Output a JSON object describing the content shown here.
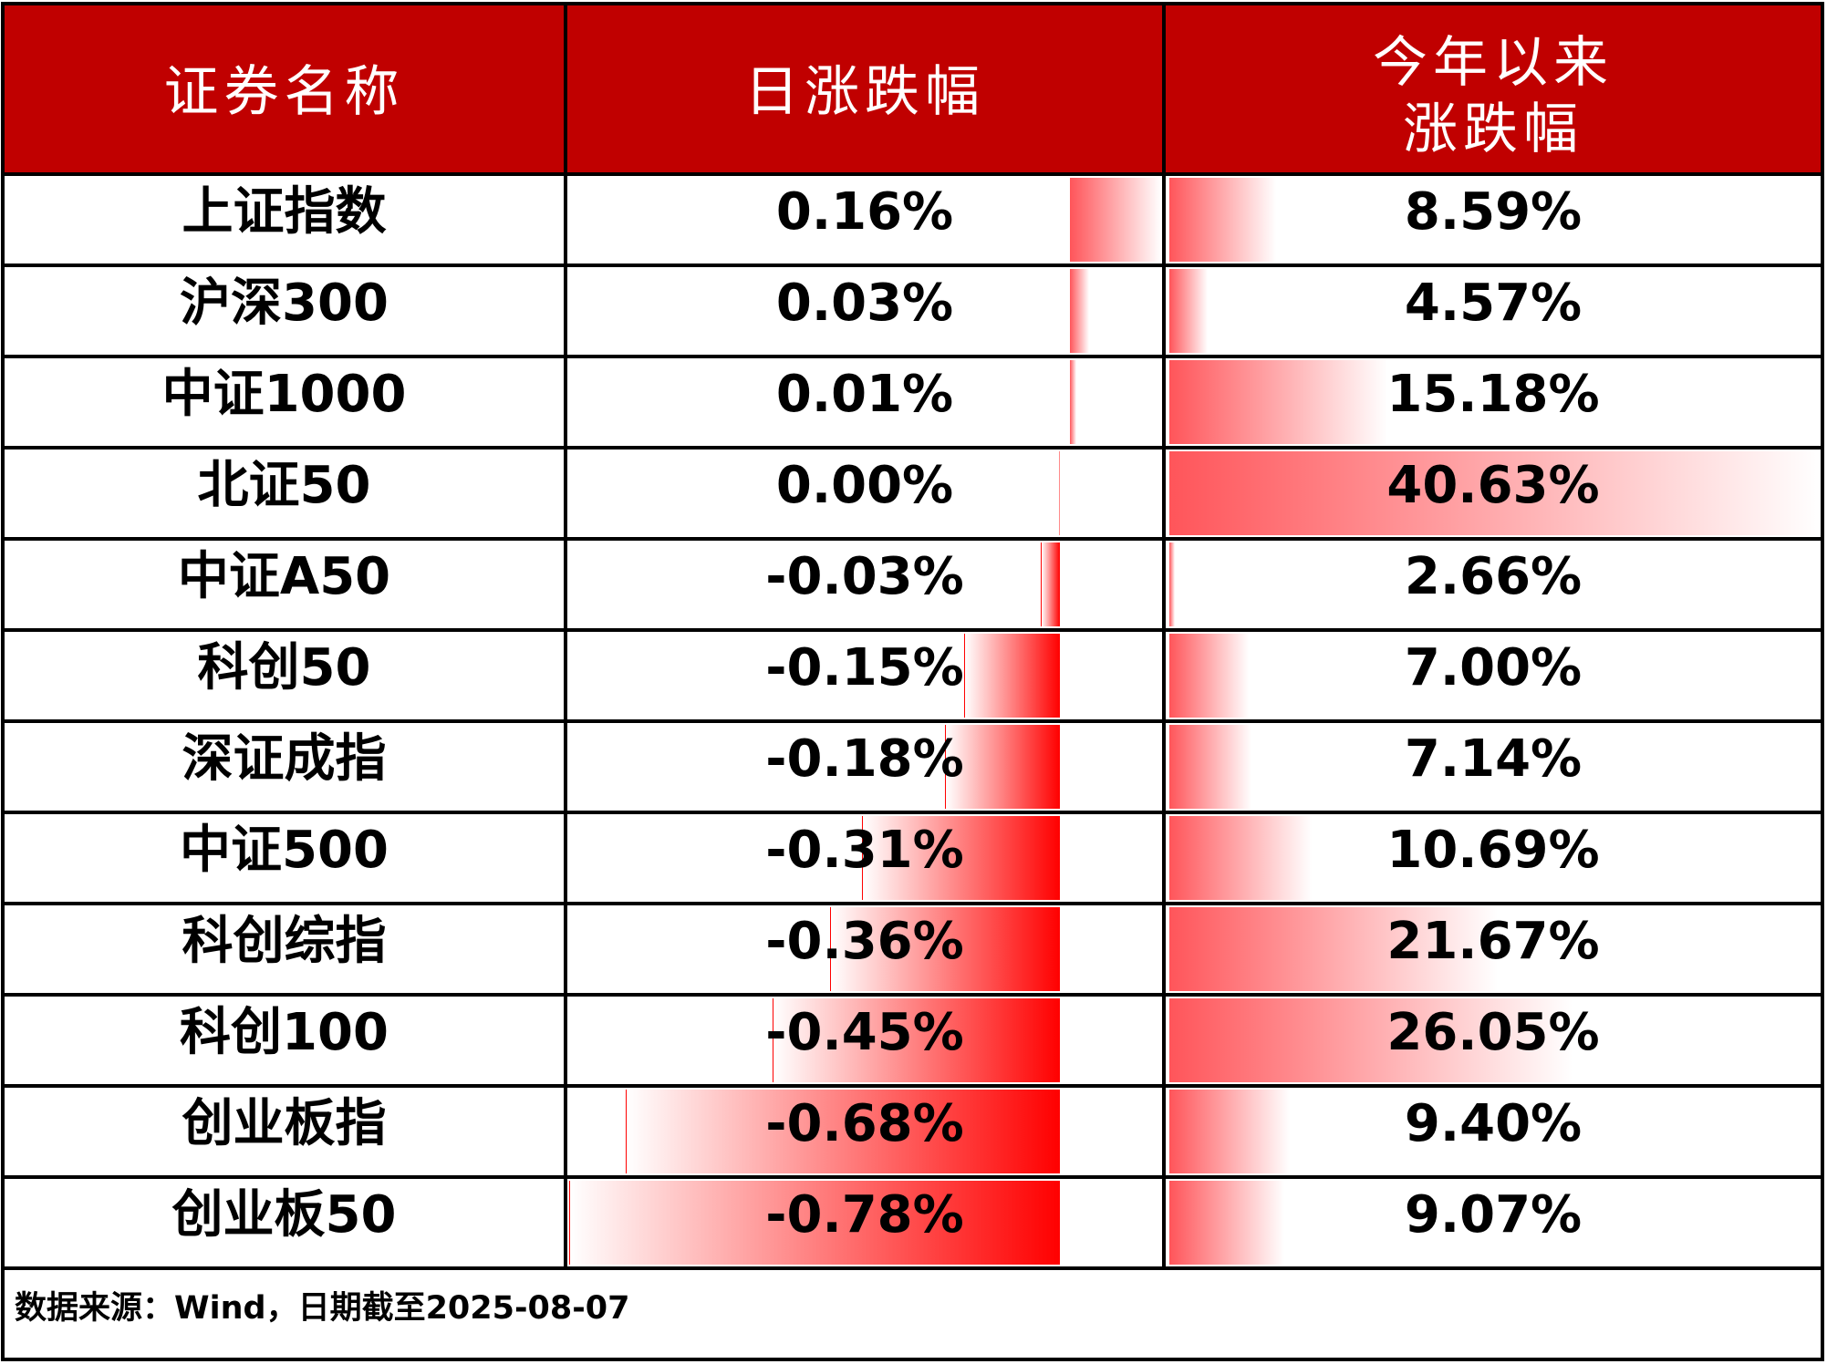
{
  "header": {
    "col_name": "证券名称",
    "col_daily": "日涨跌幅",
    "col_ytd_line1": "今年以来",
    "col_ytd_line2": "涨跌幅"
  },
  "rows": [
    {
      "name": "上证指数",
      "daily": "0.16%",
      "ytd": "8.59%"
    },
    {
      "name": "沪深300",
      "daily": "0.03%",
      "ytd": "4.57%"
    },
    {
      "name": "中证1000",
      "daily": "0.01%",
      "ytd": "15.18%"
    },
    {
      "name": "北证50",
      "daily": "0.00%",
      "ytd": "40.63%"
    },
    {
      "name": "中证A50",
      "daily": "-0.03%",
      "ytd": "2.66%"
    },
    {
      "name": "科创50",
      "daily": "-0.15%",
      "ytd": "7.00%"
    },
    {
      "name": "深证成指",
      "daily": "-0.18%",
      "ytd": "7.14%"
    },
    {
      "name": "中证500",
      "daily": "-0.31%",
      "ytd": "10.69%"
    },
    {
      "name": "科创综指",
      "daily": "-0.36%",
      "ytd": "21.67%"
    },
    {
      "name": "科创100",
      "daily": "-0.45%",
      "ytd": "26.05%"
    },
    {
      "name": "创业板指",
      "daily": "-0.68%",
      "ytd": "9.40%"
    },
    {
      "name": "创业板50",
      "daily": "-0.78%",
      "ytd": "9.07%"
    }
  ],
  "footer": {
    "source_note": "数据来源：Wind，日期截至2025-08-07"
  },
  "colors": {
    "header_background": "#C00000",
    "positive_bar": "#FF555A",
    "negative_bar": "#FF0000",
    "grid_line": "#000000"
  },
  "chart_data": {
    "type": "table",
    "title": "",
    "columns": [
      "证券名称",
      "日涨跌幅",
      "今年以来涨跌幅"
    ],
    "categories": [
      "上证指数",
      "沪深300",
      "中证1000",
      "北证50",
      "中证A50",
      "科创50",
      "深证成指",
      "中证500",
      "科创综指",
      "科创100",
      "创业板指",
      "创业板50"
    ],
    "series": [
      {
        "name": "日涨跌幅",
        "unit": "%",
        "values": [
          0.16,
          0.03,
          0.01,
          0.0,
          -0.03,
          -0.15,
          -0.18,
          -0.31,
          -0.36,
          -0.45,
          -0.68,
          -0.78
        ]
      },
      {
        "name": "今年以来涨跌幅",
        "unit": "%",
        "values": [
          8.59,
          4.57,
          15.18,
          40.63,
          2.66,
          7.0,
          7.14,
          10.69,
          21.67,
          26.05,
          9.4,
          9.07
        ]
      }
    ],
    "annotations": [
      "数据来源：Wind，日期截至2025-08-07"
    ],
    "encoding": "in-cell gradient data bars (red); daily column uses a zero axis with negative bars to the left"
  }
}
